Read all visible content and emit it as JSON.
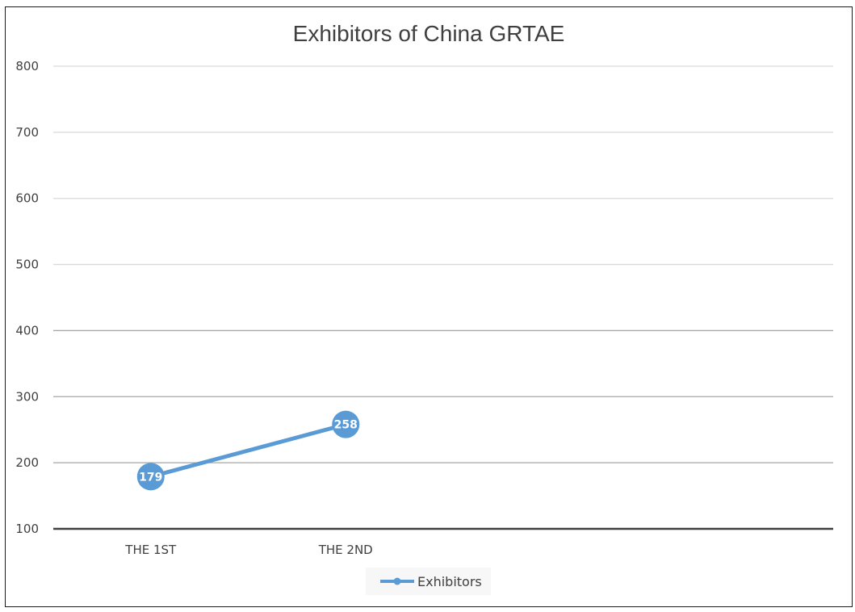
{
  "chart_data": {
    "type": "line",
    "title": "Exhibitors of China GRTAE",
    "categories": [
      "THE 1ST",
      "THE 2ND"
    ],
    "series": [
      {
        "name": "Exhibitors",
        "values": [
          179,
          258
        ],
        "color": "#5b9bd5"
      }
    ],
    "ylim": [
      100,
      800
    ],
    "yticks": [
      100,
      200,
      300,
      400,
      500,
      600,
      700,
      800
    ],
    "category_slots": 4,
    "grid": true,
    "legend": "bottom",
    "data_labels": true
  }
}
